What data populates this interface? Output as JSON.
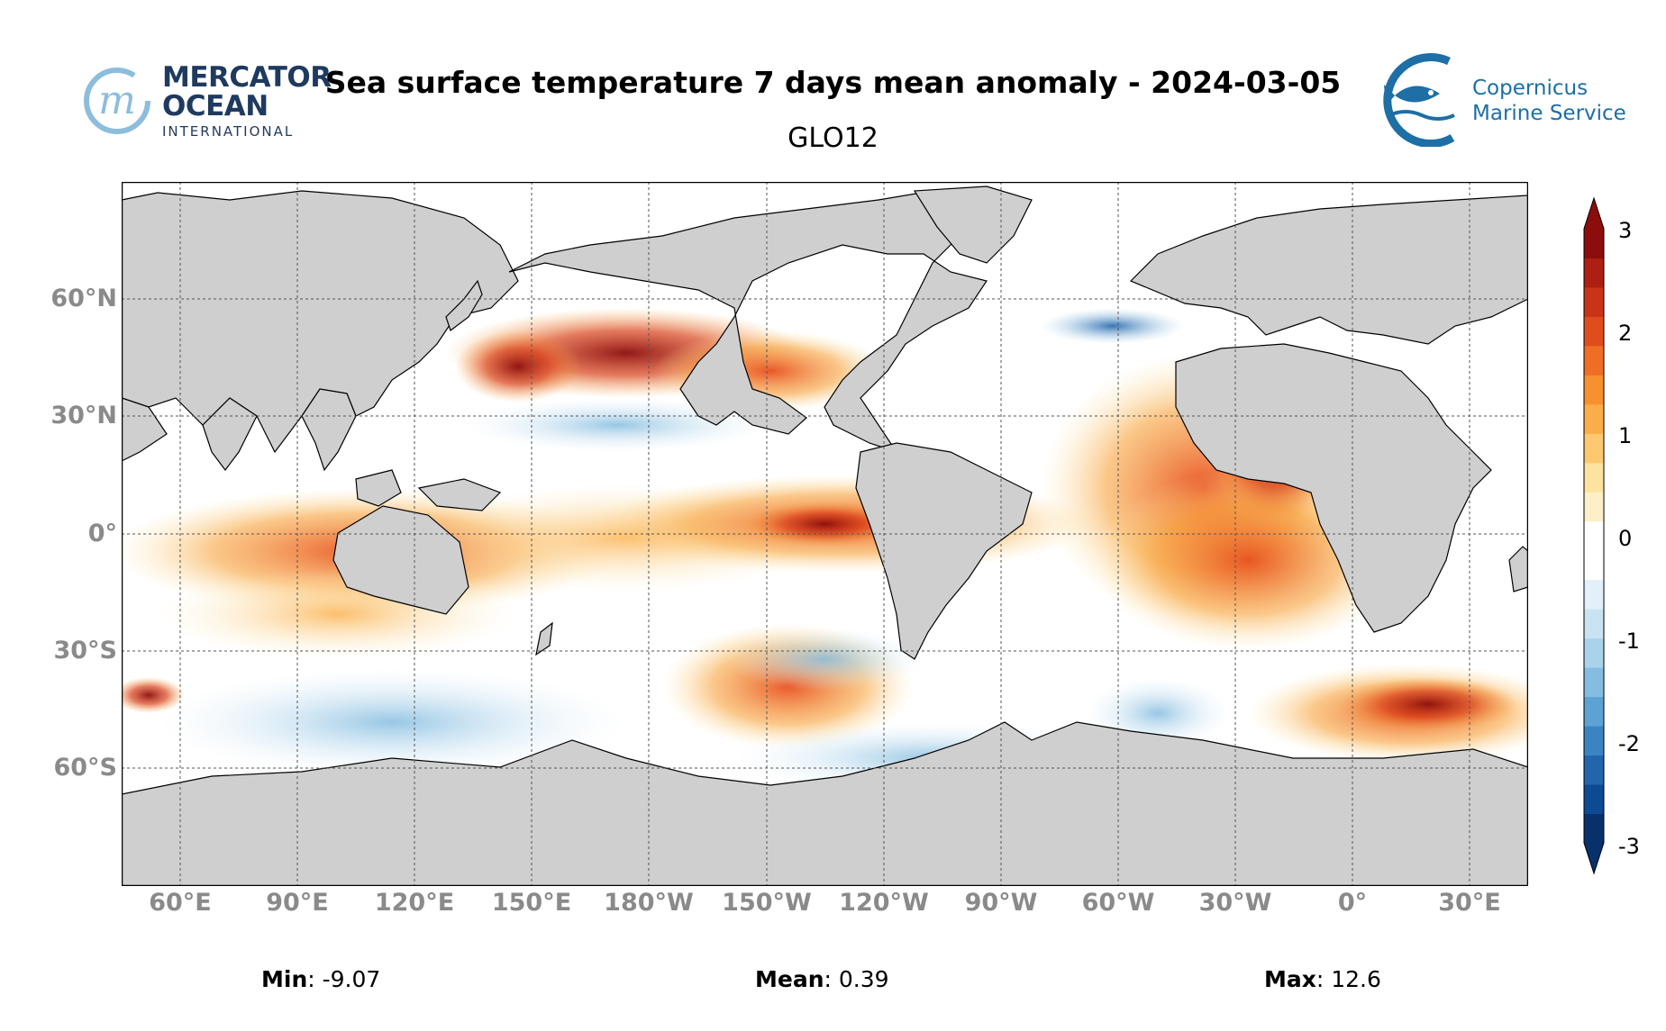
{
  "header": {
    "title": "Sea surface temperature 7 days mean anomaly - 2024-03-05",
    "subtitle": "GLO12"
  },
  "logos": {
    "mercator": {
      "line1": "MERCATOR",
      "line2": "OCEAN",
      "line3": "INTERNATIONAL",
      "color": "#1f3a5f",
      "accent": "#7fb3d5"
    },
    "copernicus": {
      "line1": "Copernicus",
      "line2": "Marine Service",
      "color": "#1d6fa5"
    }
  },
  "map": {
    "lat_labels": [
      "60°N",
      "30°N",
      "0°",
      "30°S",
      "60°S"
    ],
    "lon_labels": [
      "60°E",
      "90°E",
      "120°E",
      "150°E",
      "180°W",
      "150°W",
      "120°W",
      "90°W",
      "60°W",
      "30°W",
      "0°",
      "30°E"
    ],
    "land_color": "#cfcfcf",
    "ocean_base": "#ffffff"
  },
  "colorbar": {
    "ticks": [
      "3",
      "2",
      "1",
      "0",
      "-1",
      "-2",
      "-3"
    ],
    "colors": [
      "#08306b",
      "#0d4a94",
      "#2166ac",
      "#3a84c2",
      "#5ca3d4",
      "#85bde0",
      "#a9d2eb",
      "#c9e3f3",
      "#e3f0f9",
      "#ffffff",
      "#ffffff",
      "#fdf0c8",
      "#fde3a0",
      "#fcc970",
      "#fbae48",
      "#f7902e",
      "#ef6e25",
      "#e04d1d",
      "#c93416",
      "#ad1f12",
      "#8c0d0b"
    ]
  },
  "stats": {
    "min_label": "Min",
    "min_value": ": -9.07",
    "mean_label": "Mean",
    "mean_value": ": 0.39",
    "max_label": "Max",
    "max_value": ": 12.6"
  }
}
